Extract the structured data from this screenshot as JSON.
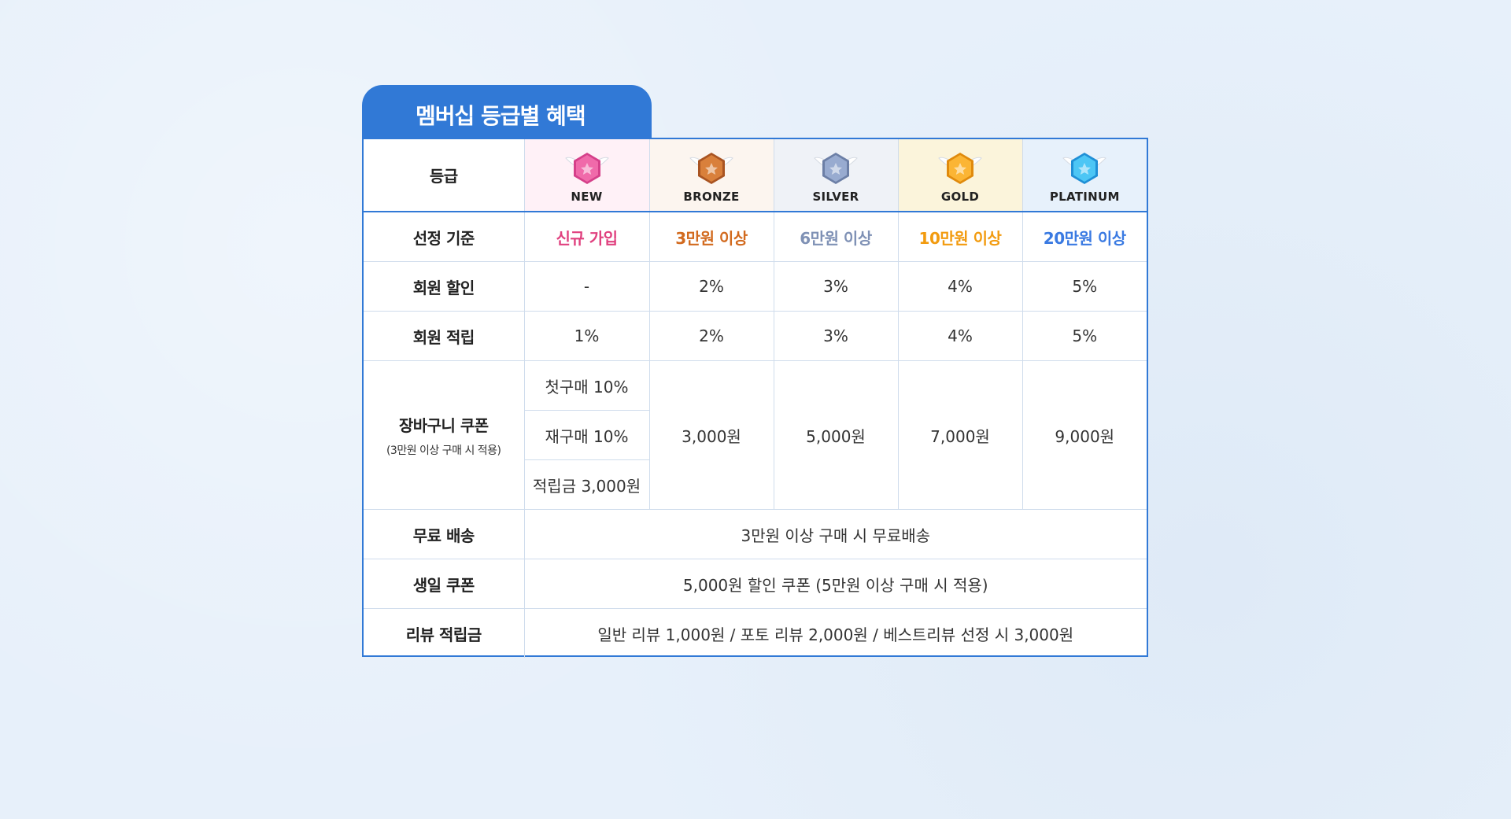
{
  "title": "멤버십 등급별 혜택",
  "colors": {
    "accent": "#3179d6",
    "new": "#e0417f",
    "bronze": "#d26a1e",
    "silver": "#7f91b5",
    "gold": "#f29b0f",
    "platinum": "#3a7ae2"
  },
  "header": {
    "label": "등급",
    "grades": [
      {
        "name": "NEW",
        "icon": "pink-wing-badge-icon",
        "bg": "#fff1f7",
        "gem": "#f06aaa",
        "gem_dark": "#d5408a"
      },
      {
        "name": "BRONZE",
        "icon": "bronze-wing-badge-icon",
        "bg": "#fcf5ef",
        "gem": "#d9803b",
        "gem_dark": "#a95422"
      },
      {
        "name": "SILVER",
        "icon": "silver-wing-badge-icon",
        "bg": "#eff2f7",
        "gem": "#98abd0",
        "gem_dark": "#6c7fa6"
      },
      {
        "name": "GOLD",
        "icon": "gold-wing-badge-icon",
        "bg": "#fbf4db",
        "gem": "#fbb534",
        "gem_dark": "#e08a0c"
      },
      {
        "name": "PLATINUM",
        "icon": "platinum-wing-badge-icon",
        "bg": "#e7f1fb",
        "gem": "#4cc6f5",
        "gem_dark": "#1f8fd6"
      }
    ]
  },
  "rows": {
    "criteria": {
      "label": "선정 기준",
      "values": [
        "신규 가입",
        "3만원 이상",
        "6만원 이상",
        "10만원 이상",
        "20만원 이상"
      ]
    },
    "discount": {
      "label": "회원 할인",
      "values": [
        "-",
        "2%",
        "3%",
        "4%",
        "5%"
      ]
    },
    "points": {
      "label": "회원 적립",
      "values": [
        "1%",
        "2%",
        "3%",
        "4%",
        "5%"
      ]
    },
    "cart_coupon": {
      "label": "장바구니 쿠폰",
      "sub": "(3만원 이상 구매 시 적용)",
      "new_values": [
        "첫구매 10%",
        "재구매 10%",
        "적립금 3,000원"
      ],
      "values": [
        "3,000원",
        "5,000원",
        "7,000원",
        "9,000원"
      ]
    },
    "shipping": {
      "label": "무료 배송",
      "value": "3만원 이상 구매 시 무료배송"
    },
    "birthday": {
      "label": "생일 쿠폰",
      "value": "5,000원 할인 쿠폰 (5만원 이상 구매 시 적용)"
    },
    "review": {
      "label": "리뷰 적립금",
      "value": "일반 리뷰 1,000원 / 포토 리뷰 2,000원 / 베스트리뷰 선정 시 3,000원"
    }
  }
}
